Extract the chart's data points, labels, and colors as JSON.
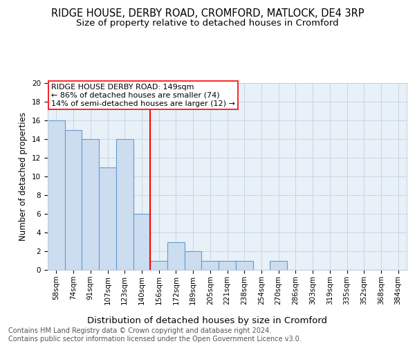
{
  "title": "RIDGE HOUSE, DERBY ROAD, CROMFORD, MATLOCK, DE4 3RP",
  "subtitle": "Size of property relative to detached houses in Cromford",
  "xlabel": "Distribution of detached houses by size in Cromford",
  "ylabel": "Number of detached properties",
  "bin_labels": [
    "58sqm",
    "74sqm",
    "91sqm",
    "107sqm",
    "123sqm",
    "140sqm",
    "156sqm",
    "172sqm",
    "189sqm",
    "205sqm",
    "221sqm",
    "238sqm",
    "254sqm",
    "270sqm",
    "286sqm",
    "303sqm",
    "319sqm",
    "335sqm",
    "352sqm",
    "368sqm",
    "384sqm"
  ],
  "bar_heights": [
    16,
    15,
    14,
    11,
    14,
    6,
    1,
    3,
    2,
    1,
    1,
    1,
    0,
    1,
    0,
    0,
    0,
    0,
    0,
    0,
    0
  ],
  "bar_color": "#ccddf0",
  "bar_edge_color": "#6699cc",
  "grid_color": "#c5d0e0",
  "bg_color": "#e8f0f8",
  "vline_x": 5.5,
  "vline_color": "red",
  "annotation_text": "RIDGE HOUSE DERBY ROAD: 149sqm\n← 86% of detached houses are smaller (74)\n14% of semi-detached houses are larger (12) →",
  "annotation_box_color": "white",
  "annotation_border_color": "red",
  "footer_text": "Contains HM Land Registry data © Crown copyright and database right 2024.\nContains public sector information licensed under the Open Government Licence v3.0.",
  "ylim": [
    0,
    20
  ],
  "yticks": [
    0,
    2,
    4,
    6,
    8,
    10,
    12,
    14,
    16,
    18,
    20
  ],
  "title_fontsize": 10.5,
  "subtitle_fontsize": 9.5,
  "ylabel_fontsize": 8.5,
  "xlabel_fontsize": 9.5,
  "tick_fontsize": 7.5,
  "annotation_fontsize": 8,
  "footer_fontsize": 7
}
